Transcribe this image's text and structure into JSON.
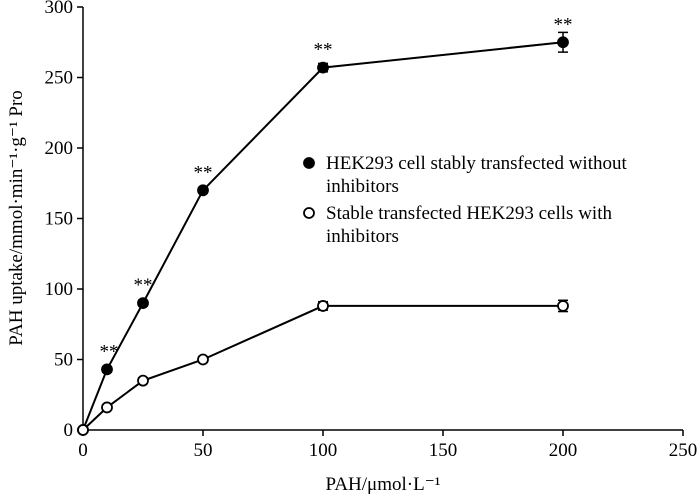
{
  "chart_data": {
    "type": "line",
    "xlabel": "PAH/μmol·L⁻¹",
    "ylabel": "PAH uptake/mmol·min⁻¹·g⁻¹ Pro",
    "x": [
      0,
      10,
      25,
      50,
      100,
      200
    ],
    "series": [
      {
        "name": "HEK293 cell stably transfected without inhibitors",
        "color": "#000000",
        "marker": "filled",
        "values": [
          0,
          43,
          90,
          170,
          257,
          275
        ],
        "errors": [
          0,
          2,
          2,
          2,
          3,
          7
        ],
        "significance": [
          null,
          "**",
          "**",
          "**",
          "**",
          "**"
        ]
      },
      {
        "name": "Stable transfected HEK293 cells with inhibitors",
        "color": "#000000",
        "marker": "open",
        "values": [
          0,
          16,
          35,
          50,
          88,
          88
        ],
        "errors": [
          0,
          1,
          2,
          2,
          3,
          4
        ]
      }
    ],
    "xlim": [
      0,
      250
    ],
    "xticks": [
      0,
      50,
      100,
      150,
      200,
      250
    ],
    "ylim": [
      0,
      300
    ],
    "yticks": [
      0,
      50,
      100,
      150,
      200,
      250,
      300
    ]
  }
}
